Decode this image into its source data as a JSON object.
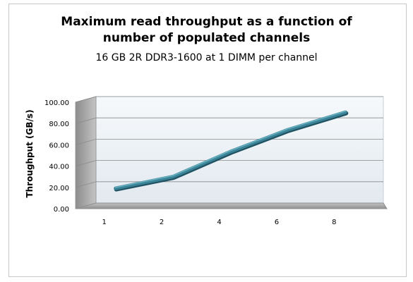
{
  "chart_data": {
    "type": "line",
    "title_lines": [
      "Maximum read throughput as a function of",
      "number of populated channels"
    ],
    "subtitle": "16 GB 2R DDR3-1600 at 1 DIMM per channel",
    "xlabel": "",
    "ylabel": "Throughput (GB/s)",
    "categories": [
      "1",
      "2",
      "4",
      "6",
      "8"
    ],
    "series": [
      {
        "values": [
          16.5,
          27.5,
          51.0,
          71.5,
          88.0
        ]
      }
    ],
    "ylim": [
      0,
      100
    ],
    "y_ticks": [
      "0.00",
      "20.00",
      "40.00",
      "60.00",
      "80.00",
      "100.00"
    ],
    "grid": true,
    "legend": "none",
    "three_d": true,
    "colors": {
      "line": "#3b8397",
      "line_highlight": "#6ab3c3",
      "wall_back": "#eef3f7",
      "wall_side": "#9e9e9e",
      "floor": "#a8a8a8",
      "grid": "#8a8a8a"
    }
  }
}
